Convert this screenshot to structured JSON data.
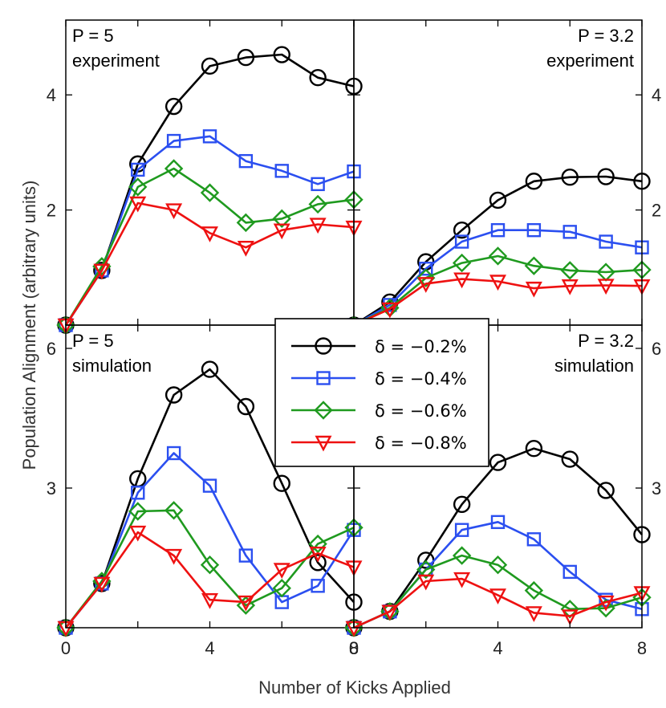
{
  "chart_data": {
    "type": "line",
    "xlabel": "Number of Kicks Applied",
    "ylabel": "Population Alignment (arbitrary units)",
    "x": [
      0,
      1,
      2,
      3,
      4,
      5,
      6,
      7,
      8
    ],
    "x_ticks": [
      "0",
      "4",
      "8"
    ],
    "legend": [
      {
        "label": "δ = −0.2%",
        "color": "#000000",
        "marker": "circle"
      },
      {
        "label": "δ = −0.4%",
        "color": "#2b4ff0",
        "marker": "square"
      },
      {
        "label": "δ = −0.6%",
        "color": "#1f9a1f",
        "marker": "diamond"
      },
      {
        "label": "δ = −0.8%",
        "color": "#ee1111",
        "marker": "triangle-down"
      }
    ],
    "panels": [
      {
        "id": "top-left",
        "label_lines": [
          "P = 5",
          "experiment"
        ],
        "label_align": "left",
        "ylim": [
          0,
          5.3
        ],
        "yticks": [
          {
            "value": 2,
            "label": "2"
          },
          {
            "value": 4,
            "label": "4"
          }
        ],
        "tick_side": "left",
        "series": [
          [
            0,
            0.95,
            2.8,
            3.8,
            4.5,
            4.65,
            4.7,
            4.3,
            4.15
          ],
          [
            0,
            0.95,
            2.7,
            3.2,
            3.28,
            2.85,
            2.68,
            2.45,
            2.67
          ],
          [
            0,
            1.02,
            2.4,
            2.72,
            2.3,
            1.78,
            1.85,
            2.1,
            2.18
          ],
          [
            0,
            0.95,
            2.12,
            2.0,
            1.6,
            1.35,
            1.65,
            1.75,
            1.7
          ]
        ]
      },
      {
        "id": "top-right",
        "label_lines": [
          "P = 3.2",
          "experiment"
        ],
        "label_align": "right",
        "ylim": [
          0,
          5.3
        ],
        "yticks": [
          {
            "value": 2,
            "label": "2"
          },
          {
            "value": 4,
            "label": "4"
          }
        ],
        "tick_side": "right",
        "series": [
          [
            0,
            0.4,
            1.1,
            1.65,
            2.17,
            2.5,
            2.57,
            2.58,
            2.5
          ],
          [
            0,
            0.35,
            0.98,
            1.45,
            1.65,
            1.65,
            1.62,
            1.45,
            1.35
          ],
          [
            0,
            0.3,
            0.82,
            1.08,
            1.2,
            1.03,
            0.95,
            0.92,
            0.96
          ],
          [
            0,
            0.28,
            0.72,
            0.8,
            0.76,
            0.64,
            0.68,
            0.69,
            0.68
          ]
        ]
      },
      {
        "id": "bottom-left",
        "label_lines": [
          "P = 5",
          "simulation"
        ],
        "label_align": "left",
        "ylim": [
          0,
          6.5
        ],
        "yticks": [
          {
            "value": 3,
            "label": "3"
          },
          {
            "value": 6,
            "label": "6"
          }
        ],
        "tick_side": "left",
        "series": [
          [
            0,
            0.95,
            3.2,
            5.0,
            5.55,
            4.75,
            3.1,
            1.4,
            0.55
          ],
          [
            0,
            0.95,
            2.9,
            3.75,
            3.05,
            1.55,
            0.55,
            0.9,
            2.1
          ],
          [
            0,
            1.0,
            2.5,
            2.52,
            1.35,
            0.48,
            0.85,
            1.8,
            2.15
          ],
          [
            0,
            0.95,
            2.05,
            1.55,
            0.6,
            0.55,
            1.25,
            1.6,
            1.3
          ]
        ]
      },
      {
        "id": "bottom-right",
        "label_lines": [
          "P = 3.2",
          "simulation"
        ],
        "label_align": "right",
        "ylim": [
          0,
          6.5
        ],
        "yticks": [
          {
            "value": 3,
            "label": "3"
          },
          {
            "value": 6,
            "label": "6"
          }
        ],
        "tick_side": "right",
        "series": [
          [
            0,
            0.35,
            1.45,
            2.65,
            3.55,
            3.85,
            3.62,
            2.95,
            2.0
          ],
          [
            0,
            0.35,
            1.25,
            2.1,
            2.27,
            1.9,
            1.2,
            0.6,
            0.4
          ],
          [
            0,
            0.35,
            1.25,
            1.55,
            1.35,
            0.8,
            0.4,
            0.42,
            0.65
          ],
          [
            0,
            0.35,
            1.0,
            1.05,
            0.7,
            0.32,
            0.25,
            0.55,
            0.75
          ]
        ]
      }
    ]
  }
}
